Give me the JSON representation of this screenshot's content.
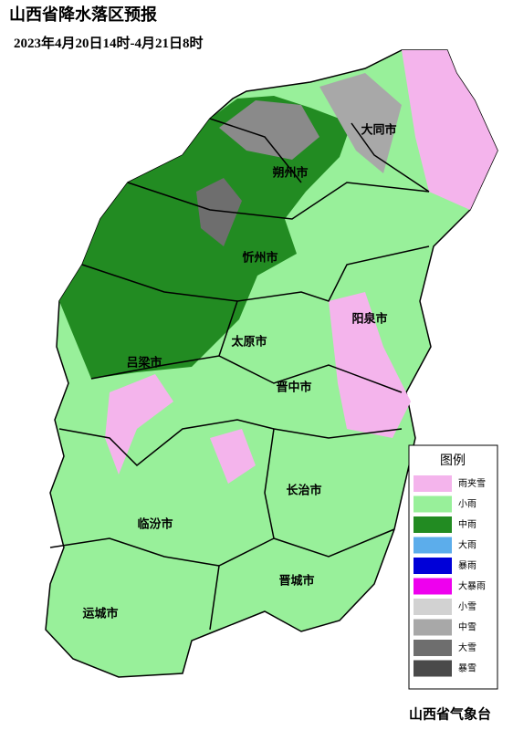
{
  "header": {
    "title": "山西省降水落区预报",
    "subtitle": "2023年4月20日14时-4月21日8时"
  },
  "cities": [
    "大同市",
    "朔州市",
    "忻州市",
    "阳泉市",
    "太原市",
    "吕梁市",
    "晋中市",
    "长治市",
    "临汾市",
    "晋城市",
    "运城市"
  ],
  "legend": {
    "title": "图例",
    "items": [
      {
        "label": "雨夹雪",
        "color": "#f4b4ec"
      },
      {
        "label": "小雨",
        "color": "#98f09a"
      },
      {
        "label": "中雨",
        "color": "#228b22"
      },
      {
        "label": "大雨",
        "color": "#5cadeb"
      },
      {
        "label": "暴雨",
        "color": "#0000d8"
      },
      {
        "label": "大暴雨",
        "color": "#ee00ee"
      },
      {
        "label": "小雪",
        "color": "#d2d2d2"
      },
      {
        "label": "中雪",
        "color": "#a8a8a8"
      },
      {
        "label": "大雪",
        "color": "#6e6e6e"
      },
      {
        "label": "暴雪",
        "color": "#4a4a4a"
      }
    ]
  },
  "footer": "山西省气象台"
}
